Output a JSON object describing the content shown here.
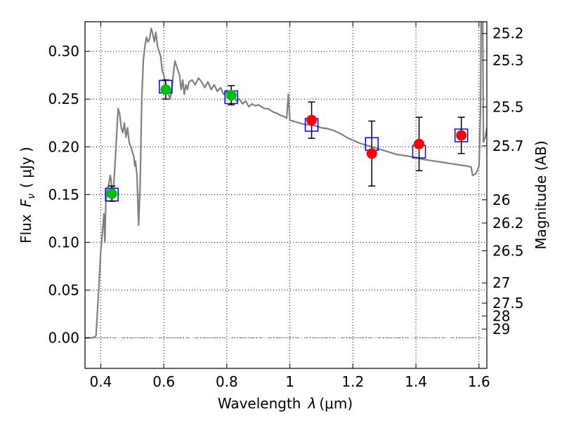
{
  "chart_data": {
    "type": "scatter",
    "xlabel_main": "Wavelength",
    "xlabel_symbol": "λ",
    "xlabel_unit": "(μm)",
    "ylabel_main": "Flux",
    "ylabel_symbol": "F",
    "ylabel_subscript": "ν",
    "ylabel_unit": "( μJy )",
    "y2label": "Magnitude (AB)",
    "xlim": [
      0.35,
      1.625
    ],
    "ylim": [
      -0.032,
      0.331
    ],
    "x_ticks": [
      {
        "v": 0.4,
        "label": "0.4"
      },
      {
        "v": 0.6,
        "label": "0.6"
      },
      {
        "v": 0.8,
        "label": "0.8"
      },
      {
        "v": 1.0,
        "label": "1"
      },
      {
        "v": 1.2,
        "label": "1.2"
      },
      {
        "v": 1.4,
        "label": "1.4"
      },
      {
        "v": 1.6,
        "label": "1.6"
      }
    ],
    "y_ticks": [
      {
        "v": 0.0,
        "label": "0.00"
      },
      {
        "v": 0.05,
        "label": "0.05"
      },
      {
        "v": 0.1,
        "label": "0.10"
      },
      {
        "v": 0.15,
        "label": "0.15"
      },
      {
        "v": 0.2,
        "label": "0.20"
      },
      {
        "v": 0.25,
        "label": "0.25"
      },
      {
        "v": 0.3,
        "label": "0.30"
      }
    ],
    "y2_ticks": [
      {
        "flux": 0.3187,
        "label": "25.2"
      },
      {
        "flux": 0.2907,
        "label": "25.3"
      },
      {
        "flux": 0.2418,
        "label": "25.5"
      },
      {
        "flux": 0.2011,
        "label": "25.7"
      },
      {
        "flux": 0.1445,
        "label": "26"
      },
      {
        "flux": 0.1202,
        "label": "26.2"
      },
      {
        "flux": 0.0912,
        "label": "26.5"
      },
      {
        "flux": 0.0575,
        "label": "27"
      },
      {
        "flux": 0.0363,
        "label": "27.5"
      },
      {
        "flux": 0.0229,
        "label": "28"
      },
      {
        "flux": 0.0091,
        "label": "29"
      }
    ],
    "colors": {
      "model_line": "#808080",
      "model_photometry": "#0000ff",
      "hst_points": "#00bf00",
      "ir_points": "#ff0000",
      "errorbar": "#000000",
      "zero_line": "#808080"
    },
    "model_spectrum": [
      [
        0.35,
        0.0
      ],
      [
        0.375,
        0.0
      ],
      [
        0.385,
        0.002
      ],
      [
        0.39,
        0.03
      ],
      [
        0.395,
        0.06
      ],
      [
        0.4,
        0.09
      ],
      [
        0.405,
        0.11
      ],
      [
        0.41,
        0.13
      ],
      [
        0.413,
        0.1
      ],
      [
        0.416,
        0.14
      ],
      [
        0.42,
        0.155
      ],
      [
        0.425,
        0.16
      ],
      [
        0.43,
        0.17
      ],
      [
        0.433,
        0.165
      ],
      [
        0.436,
        0.145
      ],
      [
        0.44,
        0.155
      ],
      [
        0.445,
        0.18
      ],
      [
        0.45,
        0.21
      ],
      [
        0.455,
        0.24
      ],
      [
        0.46,
        0.235
      ],
      [
        0.465,
        0.22
      ],
      [
        0.47,
        0.215
      ],
      [
        0.475,
        0.225
      ],
      [
        0.48,
        0.21
      ],
      [
        0.485,
        0.22
      ],
      [
        0.49,
        0.205
      ],
      [
        0.495,
        0.2
      ],
      [
        0.5,
        0.195
      ],
      [
        0.505,
        0.19
      ],
      [
        0.508,
        0.18
      ],
      [
        0.51,
        0.185
      ],
      [
        0.515,
        0.17
      ],
      [
        0.52,
        0.118
      ],
      [
        0.525,
        0.16
      ],
      [
        0.53,
        0.25
      ],
      [
        0.535,
        0.29
      ],
      [
        0.54,
        0.305
      ],
      [
        0.545,
        0.315
      ],
      [
        0.55,
        0.31
      ],
      [
        0.555,
        0.313
      ],
      [
        0.56,
        0.324
      ],
      [
        0.565,
        0.318
      ],
      [
        0.57,
        0.31
      ],
      [
        0.575,
        0.32
      ],
      [
        0.58,
        0.305
      ],
      [
        0.585,
        0.3
      ],
      [
        0.59,
        0.295
      ],
      [
        0.595,
        0.28
      ],
      [
        0.6,
        0.275
      ],
      [
        0.61,
        0.26
      ],
      [
        0.615,
        0.255
      ],
      [
        0.62,
        0.25
      ],
      [
        0.625,
        0.26
      ],
      [
        0.63,
        0.275
      ],
      [
        0.635,
        0.29
      ],
      [
        0.64,
        0.285
      ],
      [
        0.645,
        0.28
      ],
      [
        0.65,
        0.275
      ],
      [
        0.655,
        0.26
      ],
      [
        0.66,
        0.27
      ],
      [
        0.665,
        0.255
      ],
      [
        0.67,
        0.265
      ],
      [
        0.675,
        0.26
      ],
      [
        0.68,
        0.268
      ],
      [
        0.69,
        0.27
      ],
      [
        0.7,
        0.265
      ],
      [
        0.71,
        0.272
      ],
      [
        0.72,
        0.268
      ],
      [
        0.73,
        0.262
      ],
      [
        0.74,
        0.268
      ],
      [
        0.75,
        0.26
      ],
      [
        0.76,
        0.265
      ],
      [
        0.77,
        0.258
      ],
      [
        0.78,
        0.262
      ],
      [
        0.79,
        0.255
      ],
      [
        0.8,
        0.258
      ],
      [
        0.81,
        0.25
      ],
      [
        0.82,
        0.255
      ],
      [
        0.83,
        0.248
      ],
      [
        0.84,
        0.25
      ],
      [
        0.85,
        0.245
      ],
      [
        0.86,
        0.248
      ],
      [
        0.87,
        0.242
      ],
      [
        0.88,
        0.245
      ],
      [
        0.89,
        0.243
      ],
      [
        0.9,
        0.244
      ],
      [
        0.91,
        0.242
      ],
      [
        0.92,
        0.24
      ],
      [
        0.93,
        0.24
      ],
      [
        0.94,
        0.238
      ],
      [
        0.95,
        0.236
      ],
      [
        0.96,
        0.235
      ],
      [
        0.97,
        0.233
      ],
      [
        0.98,
        0.232
      ],
      [
        0.99,
        0.23
      ],
      [
        0.995,
        0.255
      ],
      [
        1.0,
        0.228
      ],
      [
        1.02,
        0.226
      ],
      [
        1.04,
        0.224
      ],
      [
        1.06,
        0.223
      ],
      [
        1.08,
        0.222
      ],
      [
        1.1,
        0.22
      ],
      [
        1.12,
        0.219
      ],
      [
        1.14,
        0.217
      ],
      [
        1.16,
        0.214
      ],
      [
        1.18,
        0.21
      ],
      [
        1.2,
        0.207
      ],
      [
        1.22,
        0.204
      ],
      [
        1.24,
        0.202
      ],
      [
        1.26,
        0.2
      ],
      [
        1.28,
        0.198
      ],
      [
        1.3,
        0.196
      ],
      [
        1.32,
        0.194
      ],
      [
        1.34,
        0.192
      ],
      [
        1.36,
        0.191
      ],
      [
        1.38,
        0.19
      ],
      [
        1.4,
        0.189
      ],
      [
        1.42,
        0.187
      ],
      [
        1.44,
        0.186
      ],
      [
        1.46,
        0.185
      ],
      [
        1.48,
        0.184
      ],
      [
        1.5,
        0.183
      ],
      [
        1.52,
        0.182
      ],
      [
        1.54,
        0.181
      ],
      [
        1.56,
        0.18
      ],
      [
        1.575,
        0.179
      ],
      [
        1.58,
        0.17
      ],
      [
        1.59,
        0.172
      ],
      [
        1.595,
        0.175
      ],
      [
        1.6,
        0.18
      ],
      [
        1.602,
        0.2
      ],
      [
        1.605,
        0.24
      ],
      [
        1.607,
        0.331
      ]
    ],
    "model_spectrum_tail": [
      [
        1.612,
        0.331
      ],
      [
        1.614,
        0.205
      ],
      [
        1.62,
        0.21
      ],
      [
        1.625,
        0.22
      ]
    ],
    "model_photometry": [
      {
        "x": 0.435,
        "y": 0.15
      },
      {
        "x": 0.606,
        "y": 0.263
      },
      {
        "x": 0.814,
        "y": 0.252
      },
      {
        "x": 1.069,
        "y": 0.223
      },
      {
        "x": 1.26,
        "y": 0.203
      },
      {
        "x": 1.41,
        "y": 0.195
      },
      {
        "x": 1.544,
        "y": 0.212
      }
    ],
    "observations": [
      {
        "x": 0.435,
        "y": 0.151,
        "err": 0.008,
        "group": "hst"
      },
      {
        "x": 0.606,
        "y": 0.26,
        "err": 0.01,
        "group": "hst"
      },
      {
        "x": 0.814,
        "y": 0.254,
        "err": 0.01,
        "group": "hst"
      },
      {
        "x": 1.069,
        "y": 0.228,
        "err": 0.019,
        "group": "ir"
      },
      {
        "x": 1.26,
        "y": 0.193,
        "err": 0.034,
        "group": "ir"
      },
      {
        "x": 1.41,
        "y": 0.203,
        "err": 0.028,
        "group": "ir"
      },
      {
        "x": 1.544,
        "y": 0.212,
        "err": 0.019,
        "group": "ir"
      }
    ]
  }
}
